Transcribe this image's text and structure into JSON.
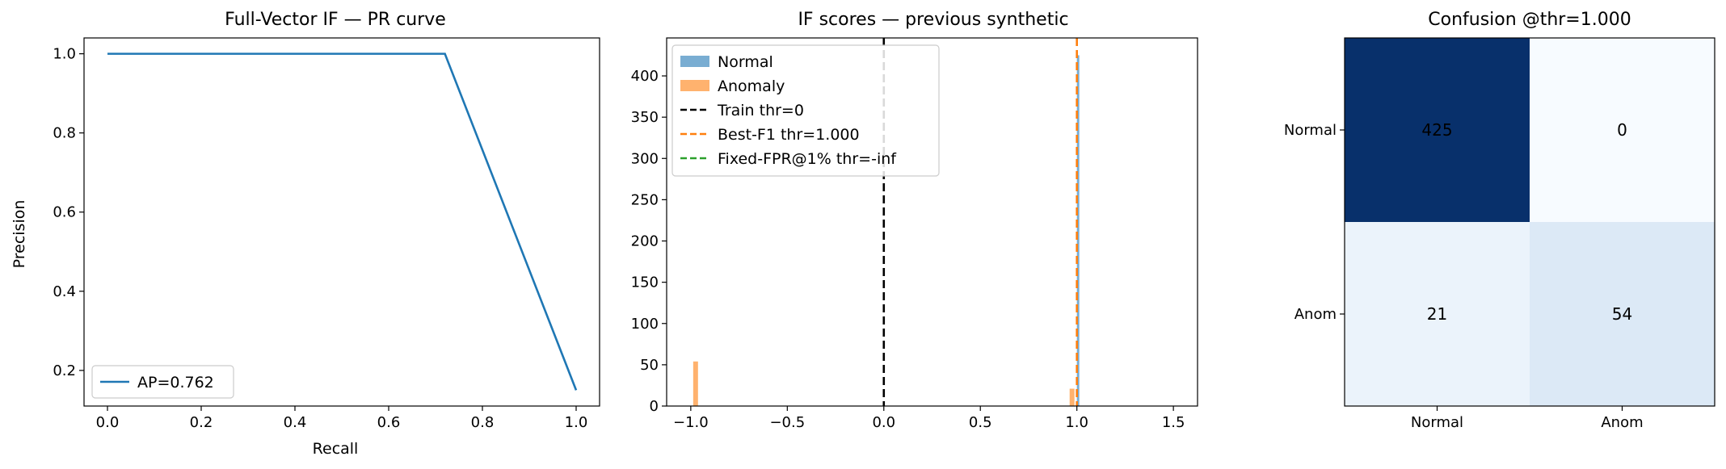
{
  "chart_data": [
    {
      "type": "line",
      "title": "Full-Vector IF — PR curve",
      "xlabel": "Recall",
      "ylabel": "Precision",
      "xlim": [
        -0.05,
        1.05
      ],
      "ylim": [
        0.11,
        1.04
      ],
      "xticks": [
        0.0,
        0.2,
        0.4,
        0.6,
        0.8,
        1.0
      ],
      "yticks": [
        0.2,
        0.4,
        0.6,
        0.8,
        1.0
      ],
      "xtick_labels": [
        "0.0",
        "0.2",
        "0.4",
        "0.6",
        "0.8",
        "1.0"
      ],
      "ytick_labels": [
        "0.2",
        "0.4",
        "0.6",
        "0.8",
        "1.0"
      ],
      "series": [
        {
          "name": "AP=0.762",
          "color": "#1f77b4",
          "x": [
            0.0,
            0.72,
            1.0
          ],
          "y": [
            1.0,
            1.0,
            0.15
          ]
        }
      ],
      "legend": "lower-left",
      "grid": false
    },
    {
      "type": "histogram",
      "title": "IF scores — previous synthetic",
      "xlim": [
        -1.125,
        1.625
      ],
      "ylim": [
        0,
        446
      ],
      "xticks": [
        -1.0,
        -0.5,
        0.0,
        0.5,
        1.0,
        1.5
      ],
      "yticks": [
        0,
        50,
        100,
        150,
        200,
        250,
        300,
        350,
        400
      ],
      "xtick_labels": [
        "−1.0",
        "−0.5",
        "0.0",
        "0.5",
        "1.0",
        "1.5"
      ],
      "ytick_labels": [
        "0",
        "50",
        "100",
        "150",
        "200",
        "250",
        "300",
        "350",
        "400"
      ],
      "series": [
        {
          "name": "Normal",
          "color": "#1f77b4",
          "bins": [
            {
              "x0": 1.0,
              "x1": 1.0125,
              "count": 425
            }
          ]
        },
        {
          "name": "Anomaly",
          "color": "#ff7f0e",
          "bins": [
            {
              "x0": -0.9875,
              "x1": -0.9625,
              "count": 54
            },
            {
              "x0": 0.9625,
              "x1": 0.9875,
              "count": 21
            }
          ]
        }
      ],
      "vlines": [
        {
          "name": "Train thr=0",
          "x": 0.0,
          "color": "#000000"
        },
        {
          "name": "Best-F1 thr=1.000",
          "x": 1.0,
          "color": "#ff7f0e"
        },
        {
          "name": "Fixed-FPR@1% thr=-inf",
          "x": null,
          "color": "#2ca02c"
        }
      ],
      "legend": "upper-left",
      "grid": false
    },
    {
      "type": "heatmap",
      "title": "Confusion @thr=1.000",
      "row_labels": [
        "Normal",
        "Anom"
      ],
      "col_labels": [
        "Normal",
        "Anom"
      ],
      "values": [
        [
          425,
          0
        ],
        [
          21,
          54
        ]
      ],
      "colormap": "Blues",
      "colors": [
        [
          "#08306b",
          "#f7fbff"
        ],
        [
          "#ebf3fb",
          "#dce9f6"
        ]
      ],
      "text_colors": [
        [
          "#000000",
          "#000000"
        ],
        [
          "#000000",
          "#000000"
        ]
      ]
    }
  ]
}
